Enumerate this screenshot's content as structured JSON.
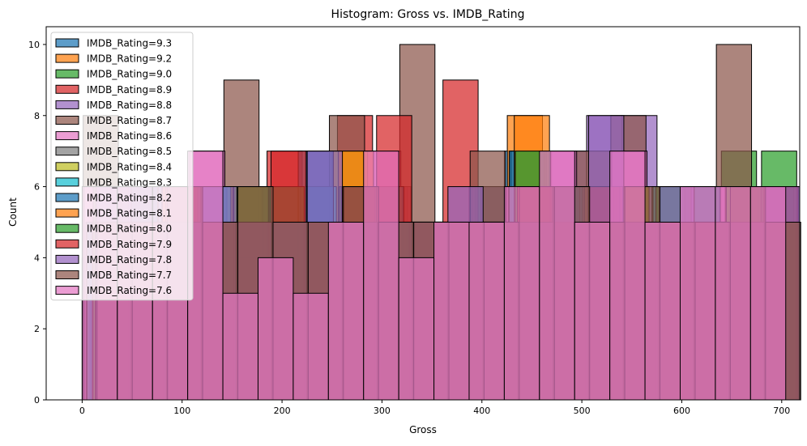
{
  "chart_data": {
    "type": "bar",
    "title": "Histogram: Gross vs. IMDB_Rating",
    "xlabel": "Gross",
    "ylabel": "Count",
    "xlim": [
      -36,
      718
    ],
    "ylim": [
      0,
      10.5
    ],
    "xticks": [
      0,
      100,
      200,
      300,
      400,
      500,
      600,
      700
    ],
    "yticks": [
      0,
      2,
      4,
      6,
      8,
      10
    ],
    "grid": false,
    "legend_position": "top-left",
    "series": [
      {
        "name": "IMDB_Rating=9.3",
        "color": "#1f77b4",
        "bin_start": 0,
        "bin_width": 35.2,
        "counts": [
          4,
          5,
          6,
          5,
          5,
          6,
          5,
          4,
          6,
          5,
          5,
          6,
          7,
          6,
          6,
          5,
          5,
          6,
          5,
          6
        ]
      },
      {
        "name": "IMDB_Rating=9.2",
        "color": "#ff7f0e",
        "bin_start": 3,
        "bin_width": 35.2,
        "counts": [
          5,
          6,
          5,
          6,
          6,
          5,
          5,
          6,
          4,
          5,
          5,
          6,
          8,
          6,
          5,
          6,
          5,
          5,
          6,
          5
        ]
      },
      {
        "name": "IMDB_Rating=9.0",
        "color": "#2ca02c",
        "bin_start": 6,
        "bin_width": 35.2,
        "counts": [
          5,
          6,
          4,
          5,
          5,
          6,
          5,
          5,
          6,
          5,
          5,
          6,
          7,
          5,
          6,
          5,
          5,
          6,
          7,
          5
        ]
      },
      {
        "name": "IMDB_Rating=8.9",
        "color": "#d62728",
        "bin_start": 9,
        "bin_width": 35.2,
        "counts": [
          5,
          5,
          6,
          5,
          5,
          7,
          5,
          8,
          6,
          4,
          9,
          5,
          6,
          5,
          6,
          5,
          5,
          5,
          6,
          5
        ]
      },
      {
        "name": "IMDB_Rating=8.8",
        "color": "#9467bd",
        "bin_start": 12,
        "bin_width": 35.2,
        "counts": [
          6,
          5,
          5,
          6,
          5,
          6,
          7,
          5,
          6,
          5,
          5,
          6,
          6,
          7,
          8,
          8,
          6,
          6,
          6,
          6
        ]
      },
      {
        "name": "IMDB_Rating=8.7",
        "color": "#8c564b",
        "bin_start": 1,
        "bin_width": 35.2,
        "counts": [
          8,
          6,
          5,
          5,
          9,
          5,
          5,
          8,
          4,
          10,
          5,
          7,
          6,
          6,
          7,
          8,
          5,
          5,
          10,
          6
        ]
      },
      {
        "name": "IMDB_Rating=8.6",
        "color": "#e377c2",
        "bin_start": 2,
        "bin_width": 35.2,
        "counts": [
          6,
          5,
          5,
          7,
          3,
          4,
          3,
          5,
          7,
          4,
          4,
          4,
          6,
          7,
          6,
          7,
          5,
          6,
          6,
          6
        ]
      },
      {
        "name": "IMDB_Rating=8.5",
        "color": "#7f7f7f",
        "bin_start": 7,
        "bin_width": 35.2,
        "counts": [
          5,
          4,
          5,
          6,
          5,
          5,
          6,
          5,
          5,
          4,
          5,
          5,
          7,
          5,
          6,
          5,
          6,
          5,
          5,
          6
        ]
      },
      {
        "name": "IMDB_Rating=8.4",
        "color": "#bcbd22",
        "bin_start": 4,
        "bin_width": 35.2,
        "counts": [
          5,
          5,
          4,
          5,
          6,
          5,
          5,
          7,
          6,
          5,
          5,
          4,
          6,
          5,
          5,
          6,
          5,
          6,
          5,
          5
        ]
      },
      {
        "name": "IMDB_Rating=8.3",
        "color": "#17becf",
        "bin_start": 8,
        "bin_width": 35.2,
        "counts": [
          4,
          5,
          5,
          6,
          5,
          5,
          6,
          5,
          5,
          5,
          4,
          5,
          5,
          6,
          5,
          5,
          6,
          5,
          5,
          6
        ]
      },
      {
        "name": "IMDB_Rating=8.2",
        "color": "#1f77b4",
        "bin_start": 5,
        "bin_width": 35.2,
        "counts": [
          5,
          6,
          5,
          5,
          4,
          6,
          7,
          5,
          6,
          5,
          5,
          5,
          7,
          6,
          5,
          5,
          5,
          6,
          5,
          5
        ]
      },
      {
        "name": "IMDB_Rating=8.1",
        "color": "#ff7f0e",
        "bin_start": 10,
        "bin_width": 35.2,
        "counts": [
          5,
          5,
          6,
          5,
          6,
          5,
          5,
          7,
          5,
          5,
          5,
          5,
          8,
          5,
          6,
          5,
          5,
          5,
          6,
          5
        ]
      },
      {
        "name": "IMDB_Rating=8.0",
        "color": "#2ca02c",
        "bin_start": 11,
        "bin_width": 35.2,
        "counts": [
          6,
          5,
          5,
          5,
          6,
          6,
          5,
          6,
          5,
          5,
          5,
          5,
          7,
          5,
          5,
          5,
          6,
          5,
          6,
          7
        ]
      },
      {
        "name": "IMDB_Rating=7.9",
        "color": "#d62728",
        "bin_start": 13,
        "bin_width": 35.2,
        "counts": [
          5,
          5,
          6,
          5,
          5,
          7,
          5,
          6,
          8,
          5,
          5,
          5,
          6,
          5,
          6,
          5,
          5,
          5,
          5,
          6
        ]
      },
      {
        "name": "IMDB_Rating=7.8",
        "color": "#9467bd",
        "bin_start": 14,
        "bin_width": 35.2,
        "counts": [
          6,
          5,
          5,
          6,
          5,
          5,
          7,
          5,
          5,
          5,
          6,
          5,
          5,
          6,
          8,
          5,
          6,
          5,
          5,
          6
        ]
      },
      {
        "name": "IMDB_Rating=7.7",
        "color": "#8c564b",
        "bin_start": 15,
        "bin_width": 35.2,
        "counts": [
          5,
          5,
          6,
          5,
          6,
          5,
          5,
          6,
          5,
          5,
          5,
          5,
          6,
          6,
          5,
          6,
          5,
          5,
          6,
          5
        ]
      },
      {
        "name": "IMDB_Rating=7.6",
        "color": "#e377c2",
        "bin_start": 0,
        "bin_width": 35.2,
        "counts": [
          6,
          6,
          6,
          7,
          3,
          4,
          3,
          5,
          7,
          4,
          5,
          5,
          6,
          7,
          5,
          7,
          5,
          6,
          6,
          6
        ]
      }
    ]
  }
}
